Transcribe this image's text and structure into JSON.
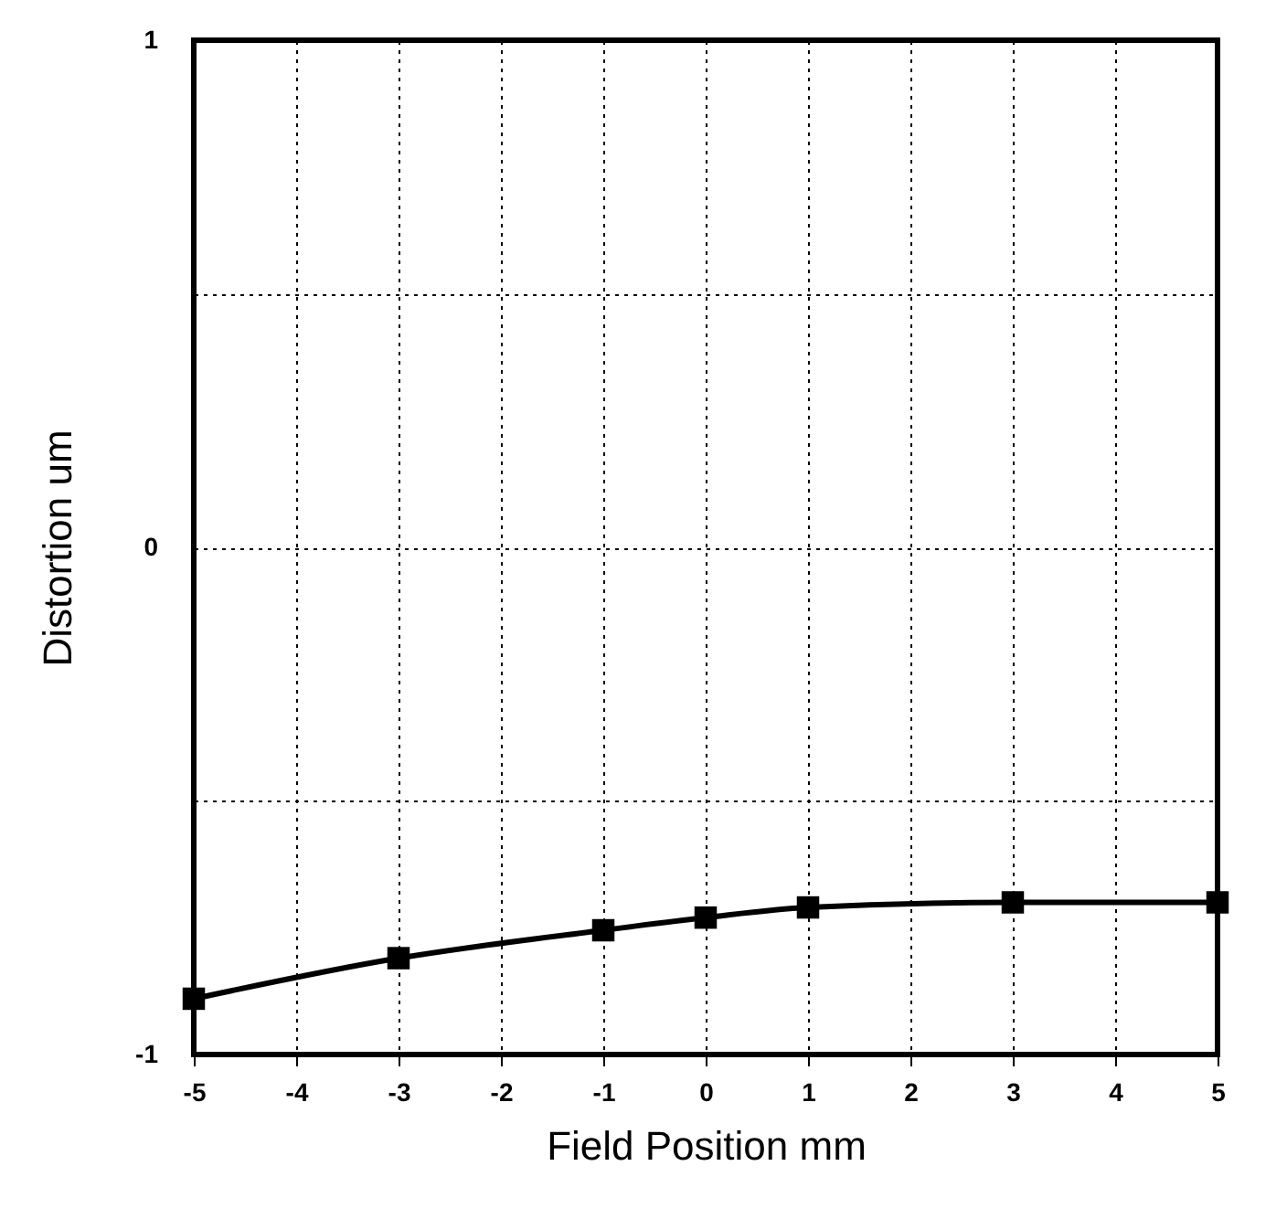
{
  "chart_data": {
    "type": "line",
    "xlabel": "Field Position mm",
    "ylabel": "Distortion um",
    "x": [
      -5,
      -3,
      -1,
      0,
      1,
      3,
      5
    ],
    "series": [
      {
        "color": "#000000",
        "values": [
          -0.89,
          -0.81,
          -0.755,
          -0.73,
          -0.71,
          -0.7,
          -0.7
        ]
      }
    ],
    "xlim": [
      -5,
      5
    ],
    "xticks": [
      -5,
      -4,
      -3,
      -2,
      -1,
      0,
      1,
      2,
      3,
      4,
      5
    ],
    "ylim": [
      -1,
      1
    ],
    "yticks": [
      -1,
      {
        "value": -0.5,
        "label": null
      },
      0,
      {
        "value": 0.5,
        "label": null
      },
      1
    ],
    "grid": true,
    "marker": "square",
    "line_style": "solid"
  }
}
